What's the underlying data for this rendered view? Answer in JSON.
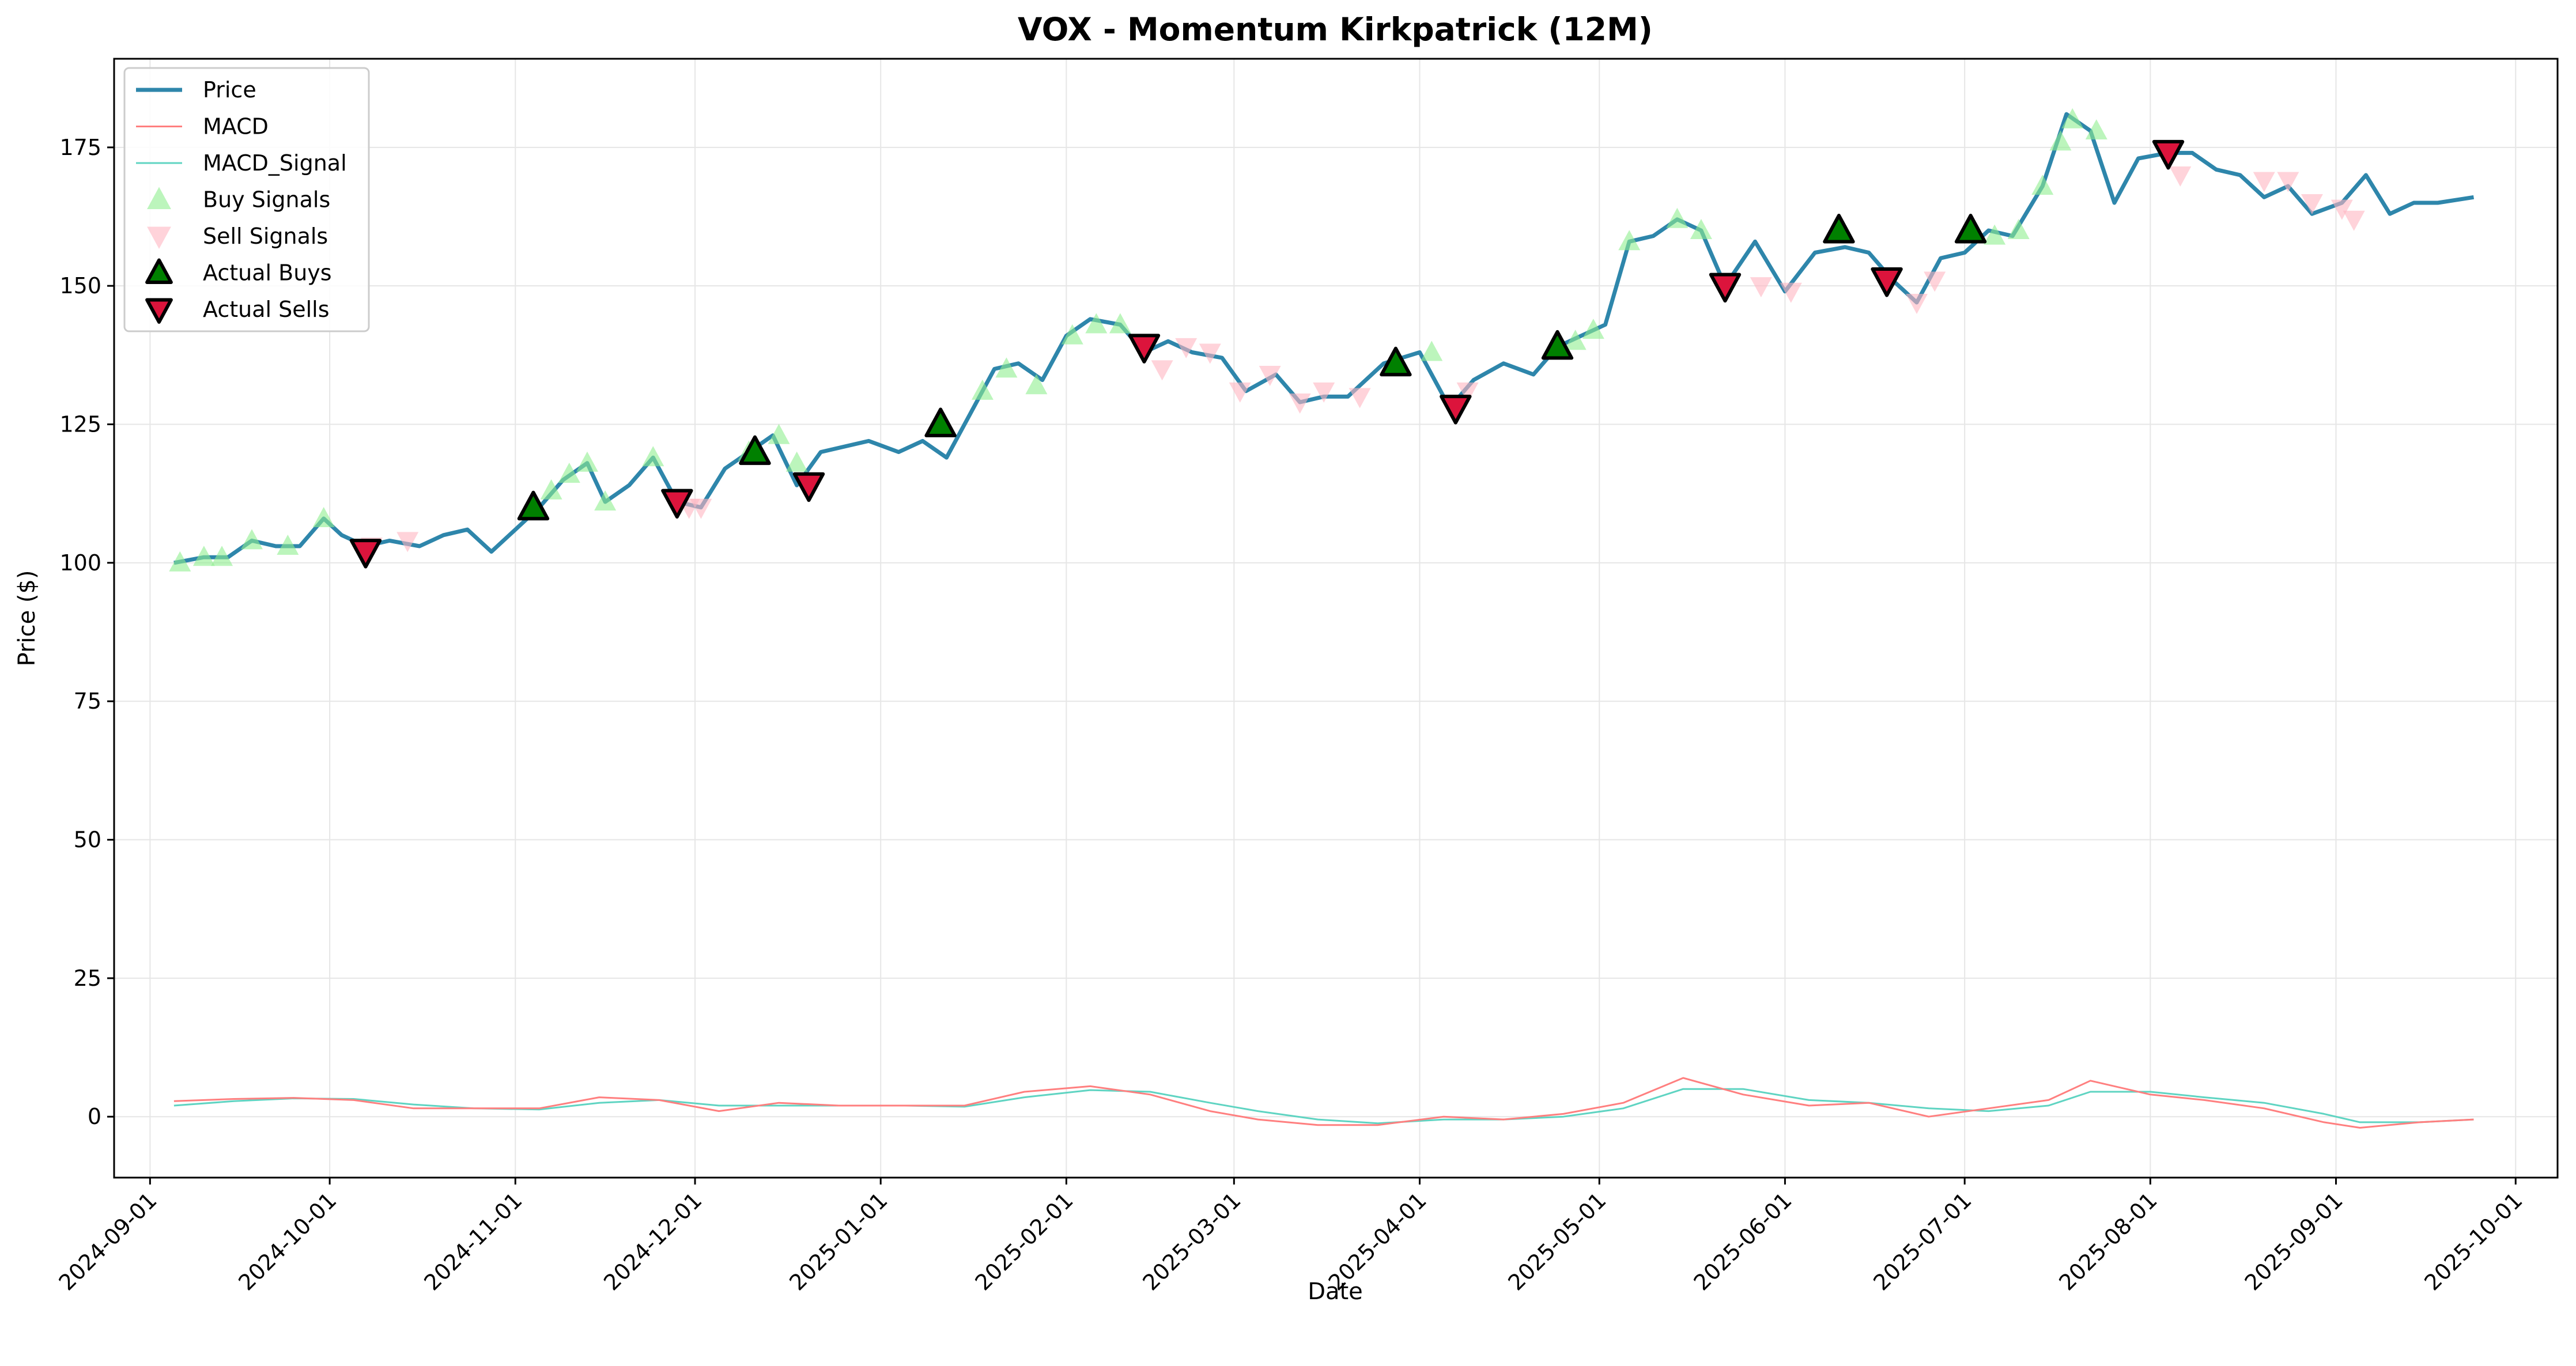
{
  "chart_data": {
    "type": "line",
    "title": "VOX - Momentum Kirkpatrick (12M)",
    "xlabel": "Date",
    "ylabel": "Price ($)",
    "ylim": [
      -11,
      191
    ],
    "xlim": [
      "2024-08-26",
      "2025-10-08"
    ],
    "grid": true,
    "legend_position": "top-left",
    "x_ticks": [
      "2024-09-01",
      "2024-10-01",
      "2024-11-01",
      "2024-12-01",
      "2025-01-01",
      "2025-02-01",
      "2025-03-01",
      "2025-04-01",
      "2025-05-01",
      "2025-06-01",
      "2025-07-01",
      "2025-08-01",
      "2025-09-01",
      "2025-10-01"
    ],
    "y_ticks": [
      0,
      25,
      50,
      75,
      100,
      125,
      150,
      175
    ],
    "colors": {
      "price": "#2e86ab",
      "macd": "#ff7f7f",
      "macd_signal": "#5fd4c2",
      "buy_signal": "#90ee90",
      "sell_signal": "#ffb6c1",
      "actual_buy": "#008000",
      "actual_sell": "#dc143c"
    },
    "legend": [
      "Price",
      "MACD",
      "MACD_Signal",
      "Buy Signals",
      "Sell Signals",
      "Actual Buys",
      "Actual Sells"
    ],
    "series": [
      {
        "name": "Price",
        "points": [
          [
            "2024-09-05",
            100
          ],
          [
            "2024-09-10",
            101
          ],
          [
            "2024-09-14",
            101
          ],
          [
            "2024-09-18",
            104
          ],
          [
            "2024-09-22",
            103
          ],
          [
            "2024-09-26",
            103
          ],
          [
            "2024-09-30",
            108
          ],
          [
            "2024-10-03",
            105
          ],
          [
            "2024-10-07",
            103
          ],
          [
            "2024-10-11",
            104
          ],
          [
            "2024-10-16",
            103
          ],
          [
            "2024-10-20",
            105
          ],
          [
            "2024-10-24",
            106
          ],
          [
            "2024-10-28",
            102
          ],
          [
            "2024-11-01",
            106
          ],
          [
            "2024-11-05",
            110
          ],
          [
            "2024-11-09",
            115
          ],
          [
            "2024-11-13",
            118
          ],
          [
            "2024-11-16",
            111
          ],
          [
            "2024-11-20",
            114
          ],
          [
            "2024-11-24",
            119
          ],
          [
            "2024-11-28",
            111
          ],
          [
            "2024-12-02",
            110
          ],
          [
            "2024-12-06",
            117
          ],
          [
            "2024-12-10",
            120
          ],
          [
            "2024-12-14",
            123
          ],
          [
            "2024-12-18",
            114
          ],
          [
            "2024-12-22",
            120
          ],
          [
            "2024-12-26",
            121
          ],
          [
            "2024-12-30",
            122
          ],
          [
            "2025-01-04",
            120
          ],
          [
            "2025-01-08",
            122
          ],
          [
            "2025-01-12",
            119
          ],
          [
            "2025-01-16",
            127
          ],
          [
            "2025-01-20",
            135
          ],
          [
            "2025-01-24",
            136
          ],
          [
            "2025-01-28",
            133
          ],
          [
            "2025-02-01",
            141
          ],
          [
            "2025-02-05",
            144
          ],
          [
            "2025-02-10",
            143
          ],
          [
            "2025-02-14",
            138
          ],
          [
            "2025-02-18",
            140
          ],
          [
            "2025-02-22",
            138
          ],
          [
            "2025-02-27",
            137
          ],
          [
            "2025-03-03",
            131
          ],
          [
            "2025-03-08",
            134
          ],
          [
            "2025-03-12",
            129
          ],
          [
            "2025-03-16",
            130
          ],
          [
            "2025-03-20",
            130
          ],
          [
            "2025-03-26",
            136
          ],
          [
            "2025-04-01",
            138
          ],
          [
            "2025-04-06",
            128
          ],
          [
            "2025-04-10",
            133
          ],
          [
            "2025-04-15",
            136
          ],
          [
            "2025-04-20",
            134
          ],
          [
            "2025-04-24",
            139
          ],
          [
            "2025-04-28",
            141
          ],
          [
            "2025-05-02",
            143
          ],
          [
            "2025-05-06",
            158
          ],
          [
            "2025-05-10",
            159
          ],
          [
            "2025-05-14",
            162
          ],
          [
            "2025-05-18",
            160
          ],
          [
            "2025-05-22",
            150
          ],
          [
            "2025-05-27",
            158
          ],
          [
            "2025-06-01",
            149
          ],
          [
            "2025-06-06",
            156
          ],
          [
            "2025-06-11",
            157
          ],
          [
            "2025-06-15",
            156
          ],
          [
            "2025-06-19",
            151
          ],
          [
            "2025-06-23",
            147
          ],
          [
            "2025-06-27",
            155
          ],
          [
            "2025-07-01",
            156
          ],
          [
            "2025-07-05",
            160
          ],
          [
            "2025-07-09",
            159
          ],
          [
            "2025-07-14",
            168
          ],
          [
            "2025-07-18",
            181
          ],
          [
            "2025-07-22",
            178
          ],
          [
            "2025-07-26",
            165
          ],
          [
            "2025-07-30",
            173
          ],
          [
            "2025-08-04",
            174
          ],
          [
            "2025-08-08",
            174
          ],
          [
            "2025-08-12",
            171
          ],
          [
            "2025-08-16",
            170
          ],
          [
            "2025-08-20",
            166
          ],
          [
            "2025-08-24",
            168
          ],
          [
            "2025-08-28",
            163
          ],
          [
            "2025-09-02",
            165
          ],
          [
            "2025-09-06",
            170
          ],
          [
            "2025-09-10",
            163
          ],
          [
            "2025-09-14",
            165
          ],
          [
            "2025-09-18",
            165
          ],
          [
            "2025-09-24",
            166
          ]
        ]
      },
      {
        "name": "MACD",
        "points": [
          [
            "2024-09-05",
            2.8
          ],
          [
            "2024-09-15",
            3.2
          ],
          [
            "2024-09-25",
            3.4
          ],
          [
            "2024-10-05",
            3.0
          ],
          [
            "2024-10-15",
            1.5
          ],
          [
            "2024-10-25",
            1.5
          ],
          [
            "2024-11-05",
            1.5
          ],
          [
            "2024-11-15",
            3.5
          ],
          [
            "2024-11-25",
            3.0
          ],
          [
            "2024-12-05",
            1.0
          ],
          [
            "2024-12-15",
            2.5
          ],
          [
            "2024-12-25",
            2.0
          ],
          [
            "2025-01-05",
            2.0
          ],
          [
            "2025-01-15",
            2.0
          ],
          [
            "2025-01-25",
            4.5
          ],
          [
            "2025-02-05",
            5.5
          ],
          [
            "2025-02-15",
            4.0
          ],
          [
            "2025-02-25",
            1.0
          ],
          [
            "2025-03-05",
            -0.5
          ],
          [
            "2025-03-15",
            -1.5
          ],
          [
            "2025-03-25",
            -1.5
          ],
          [
            "2025-04-05",
            0.0
          ],
          [
            "2025-04-15",
            -0.5
          ],
          [
            "2025-04-25",
            0.5
          ],
          [
            "2025-05-05",
            2.5
          ],
          [
            "2025-05-15",
            7.0
          ],
          [
            "2025-05-25",
            4.0
          ],
          [
            "2025-06-05",
            2.0
          ],
          [
            "2025-06-15",
            2.5
          ],
          [
            "2025-06-25",
            0.0
          ],
          [
            "2025-07-05",
            1.5
          ],
          [
            "2025-07-15",
            3.0
          ],
          [
            "2025-07-22",
            6.5
          ],
          [
            "2025-08-01",
            4.0
          ],
          [
            "2025-08-10",
            3.0
          ],
          [
            "2025-08-20",
            1.5
          ],
          [
            "2025-08-30",
            -1.0
          ],
          [
            "2025-09-05",
            -2.0
          ],
          [
            "2025-09-15",
            -1.0
          ],
          [
            "2025-09-24",
            -0.5
          ]
        ]
      },
      {
        "name": "MACD_Signal",
        "points": [
          [
            "2024-09-05",
            2.0
          ],
          [
            "2024-09-15",
            2.8
          ],
          [
            "2024-09-25",
            3.3
          ],
          [
            "2024-10-05",
            3.2
          ],
          [
            "2024-10-15",
            2.2
          ],
          [
            "2024-10-25",
            1.5
          ],
          [
            "2024-11-05",
            1.3
          ],
          [
            "2024-11-15",
            2.5
          ],
          [
            "2024-11-25",
            3.0
          ],
          [
            "2024-12-05",
            2.0
          ],
          [
            "2024-12-15",
            2.0
          ],
          [
            "2024-12-25",
            2.0
          ],
          [
            "2025-01-05",
            2.0
          ],
          [
            "2025-01-15",
            1.8
          ],
          [
            "2025-01-25",
            3.5
          ],
          [
            "2025-02-05",
            4.8
          ],
          [
            "2025-02-15",
            4.5
          ],
          [
            "2025-02-25",
            2.5
          ],
          [
            "2025-03-05",
            1.0
          ],
          [
            "2025-03-15",
            -0.5
          ],
          [
            "2025-03-25",
            -1.2
          ],
          [
            "2025-04-05",
            -0.5
          ],
          [
            "2025-04-15",
            -0.5
          ],
          [
            "2025-04-25",
            0.0
          ],
          [
            "2025-05-05",
            1.5
          ],
          [
            "2025-05-15",
            5.0
          ],
          [
            "2025-05-25",
            5.0
          ],
          [
            "2025-06-05",
            3.0
          ],
          [
            "2025-06-15",
            2.5
          ],
          [
            "2025-06-25",
            1.5
          ],
          [
            "2025-07-05",
            1.0
          ],
          [
            "2025-07-15",
            2.0
          ],
          [
            "2025-07-22",
            4.5
          ],
          [
            "2025-08-01",
            4.5
          ],
          [
            "2025-08-10",
            3.5
          ],
          [
            "2025-08-20",
            2.5
          ],
          [
            "2025-08-30",
            0.5
          ],
          [
            "2025-09-05",
            -1.0
          ],
          [
            "2025-09-15",
            -1.0
          ],
          [
            "2025-09-24",
            -0.5
          ]
        ]
      }
    ],
    "buy_signals": [
      [
        "2024-09-06",
        100
      ],
      [
        "2024-09-10",
        101
      ],
      [
        "2024-09-13",
        101
      ],
      [
        "2024-09-18",
        104
      ],
      [
        "2024-09-24",
        103
      ],
      [
        "2024-09-30",
        108
      ],
      [
        "2024-11-07",
        113
      ],
      [
        "2024-11-10",
        116
      ],
      [
        "2024-11-13",
        118
      ],
      [
        "2024-11-16",
        111
      ],
      [
        "2024-11-24",
        119
      ],
      [
        "2024-12-10",
        120
      ],
      [
        "2024-12-15",
        123
      ],
      [
        "2024-12-18",
        118
      ],
      [
        "2025-01-18",
        131
      ],
      [
        "2025-01-22",
        135
      ],
      [
        "2025-01-27",
        132
      ],
      [
        "2025-02-02",
        141
      ],
      [
        "2025-02-06",
        143
      ],
      [
        "2025-02-10",
        143
      ],
      [
        "2025-04-03",
        138
      ],
      [
        "2025-04-27",
        140
      ],
      [
        "2025-04-30",
        142
      ],
      [
        "2025-05-06",
        158
      ],
      [
        "2025-05-14",
        162
      ],
      [
        "2025-05-18",
        160
      ],
      [
        "2025-07-06",
        159
      ],
      [
        "2025-07-10",
        160
      ],
      [
        "2025-07-14",
        168
      ],
      [
        "2025-07-17",
        176
      ],
      [
        "2025-07-19",
        180
      ],
      [
        "2025-07-23",
        178
      ]
    ],
    "sell_signals": [
      [
        "2024-10-08",
        103
      ],
      [
        "2024-10-14",
        104
      ],
      [
        "2024-11-30",
        110
      ],
      [
        "2024-12-02",
        110
      ],
      [
        "2025-02-17",
        135
      ],
      [
        "2025-02-21",
        139
      ],
      [
        "2025-02-25",
        138
      ],
      [
        "2025-03-02",
        131
      ],
      [
        "2025-03-07",
        134
      ],
      [
        "2025-03-12",
        129
      ],
      [
        "2025-03-16",
        131
      ],
      [
        "2025-03-22",
        130
      ],
      [
        "2025-04-09",
        131
      ],
      [
        "2025-05-28",
        150
      ],
      [
        "2025-06-02",
        149
      ],
      [
        "2025-06-23",
        147
      ],
      [
        "2025-06-26",
        151
      ],
      [
        "2025-08-06",
        170
      ],
      [
        "2025-08-20",
        169
      ],
      [
        "2025-08-24",
        169
      ],
      [
        "2025-08-28",
        165
      ],
      [
        "2025-09-02",
        164
      ],
      [
        "2025-09-04",
        162
      ]
    ],
    "actual_buys": [
      [
        "2024-11-04",
        110
      ],
      [
        "2024-12-11",
        120
      ],
      [
        "2025-01-11",
        125
      ],
      [
        "2025-03-28",
        136
      ],
      [
        "2025-04-24",
        139
      ],
      [
        "2025-06-10",
        160
      ],
      [
        "2025-07-02",
        160
      ]
    ],
    "actual_sells": [
      [
        "2024-10-07",
        102
      ],
      [
        "2024-11-28",
        111
      ],
      [
        "2024-12-20",
        114
      ],
      [
        "2025-02-14",
        139
      ],
      [
        "2025-04-07",
        128
      ],
      [
        "2025-05-22",
        150
      ],
      [
        "2025-06-18",
        151
      ],
      [
        "2025-08-04",
        174
      ]
    ]
  }
}
